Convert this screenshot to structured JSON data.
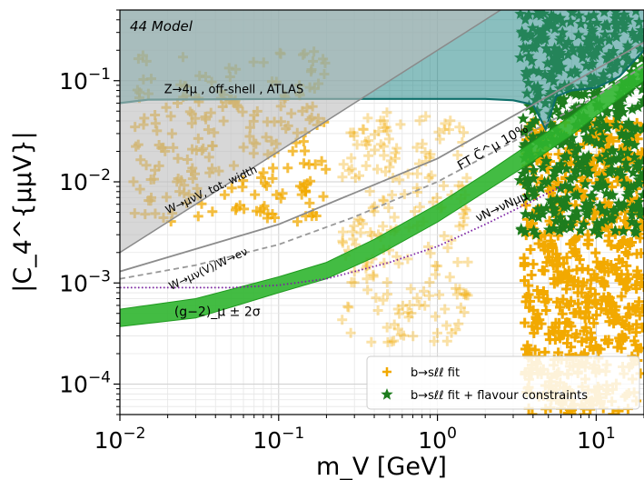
{
  "chart_data": {
    "type": "scatter",
    "title": "44 Model",
    "xlabel": "m_V [GeV]",
    "ylabel": "|C_4^{μμV}|",
    "x_scale": "log",
    "y_scale": "log",
    "xlim": [
      0.01,
      20
    ],
    "ylim": [
      5e-05,
      0.5
    ],
    "grid": true,
    "x_ticks": [
      {
        "value": 0.01,
        "base": "10",
        "exp": "−2"
      },
      {
        "value": 0.1,
        "base": "10",
        "exp": "−1"
      },
      {
        "value": 1,
        "base": "10",
        "exp": "0"
      },
      {
        "value": 10,
        "base": "10",
        "exp": "1"
      }
    ],
    "y_ticks": [
      {
        "value": 0.0001,
        "base": "10",
        "exp": "−4"
      },
      {
        "value": 0.001,
        "base": "10",
        "exp": "−3"
      },
      {
        "value": 0.01,
        "base": "10",
        "exp": "−2"
      },
      {
        "value": 0.1,
        "base": "10",
        "exp": "−1"
      }
    ],
    "bands": [
      {
        "name": "Z→4μ , off-shell , ATLAS",
        "kind": "upper_exclusion",
        "color": "#2a8a8a",
        "lower": [
          [
            0.01,
            0.06
          ],
          [
            0.015,
            0.065
          ],
          [
            0.1,
            0.066
          ],
          [
            0.5,
            0.066
          ],
          [
            1,
            0.066
          ],
          [
            2,
            0.066
          ],
          [
            3,
            0.064
          ],
          [
            4,
            0.058
          ],
          [
            4.6,
            0.038
          ],
          [
            4.8,
            0.033
          ],
          [
            5.0,
            0.04
          ],
          [
            5.6,
            0.07
          ],
          [
            7,
            0.08
          ],
          [
            10,
            0.085
          ],
          [
            14,
            0.11
          ],
          [
            20,
            0.2
          ]
        ]
      },
      {
        "name": "W→μνV, tot. width",
        "kind": "upper_exclusion",
        "color": "#bdbdbd",
        "lower": [
          [
            0.01,
            0.002
          ],
          [
            0.03,
            0.006
          ],
          [
            0.1,
            0.02
          ],
          [
            0.3,
            0.06
          ],
          [
            1,
            0.2
          ],
          [
            2.5,
            0.5
          ]
        ]
      },
      {
        "name": "(g−2)_μ ± 2σ",
        "kind": "band",
        "color": "#2fb52f",
        "upper": [
          [
            0.01,
            0.00055
          ],
          [
            0.03,
            0.0007
          ],
          [
            0.1,
            0.00115
          ],
          [
            0.2,
            0.0016
          ],
          [
            0.4,
            0.0027
          ],
          [
            1,
            0.006
          ],
          [
            2,
            0.012
          ],
          [
            4,
            0.025
          ],
          [
            7,
            0.045
          ],
          [
            10,
            0.07
          ],
          [
            20,
            0.15
          ]
        ],
        "lower": [
          [
            0.01,
            0.00037
          ],
          [
            0.03,
            0.00045
          ],
          [
            0.1,
            0.0008
          ],
          [
            0.2,
            0.0011
          ],
          [
            0.4,
            0.0018
          ],
          [
            1,
            0.004
          ],
          [
            2,
            0.008
          ],
          [
            4,
            0.016
          ],
          [
            7,
            0.029
          ],
          [
            10,
            0.045
          ],
          [
            20,
            0.1
          ]
        ]
      }
    ],
    "lines": [
      {
        "name": "FT C̃^μ 10%",
        "style": "dashed",
        "color": "#999999",
        "points": [
          [
            0.01,
            0.0011
          ],
          [
            0.03,
            0.0015
          ],
          [
            0.1,
            0.0024
          ],
          [
            0.3,
            0.0045
          ],
          [
            1,
            0.01
          ],
          [
            3,
            0.025
          ],
          [
            10,
            0.07
          ],
          [
            20,
            0.14
          ]
        ]
      },
      {
        "name": "W→μν(V)/W→eν",
        "style": "solid",
        "color": "#8c8c8c",
        "points": [
          [
            0.01,
            0.0013
          ],
          [
            0.1,
            0.0038
          ],
          [
            1,
            0.017
          ],
          [
            10,
            0.13
          ],
          [
            20,
            0.24
          ]
        ]
      },
      {
        "name": "νN→νNμμ",
        "style": "dotted",
        "color": "#7a1fa2",
        "points": [
          [
            0.01,
            0.0009
          ],
          [
            0.05,
            0.0009
          ],
          [
            0.1,
            0.00095
          ],
          [
            0.2,
            0.0011
          ],
          [
            0.5,
            0.0016
          ],
          [
            1,
            0.0023
          ],
          [
            2,
            0.0038
          ],
          [
            4,
            0.0065
          ],
          [
            6,
            0.009
          ]
        ]
      }
    ],
    "series": [
      {
        "name": "b→sℓℓ fit",
        "marker": "plus",
        "color": "#f2a900",
        "regions": [
          {
            "x": [
              0.012,
              0.2
            ],
            "y": [
              0.004,
              0.2
            ],
            "count": 220,
            "alpha": 0.75
          },
          {
            "x": [
              0.25,
              1.6
            ],
            "y": [
              0.00025,
              0.05
            ],
            "count": 200,
            "alpha": 0.35
          },
          {
            "x": [
              3.5,
              20
            ],
            "y": [
              5e-05,
              0.04
            ],
            "count": 700,
            "alpha": 1.0
          }
        ]
      },
      {
        "name": "b→sℓℓ fit + flavour constraints",
        "marker": "star",
        "color": "#1e7d1e",
        "regions": [
          {
            "x": [
              3.3,
              20
            ],
            "y": [
              0.003,
              0.5
            ],
            "count": 520,
            "alpha": 1.0
          }
        ]
      }
    ],
    "annotations": [
      {
        "text": "Z→4μ , off-shell , ATLAS",
        "x": 0.019,
        "y": 0.075,
        "rotation": 0,
        "size": 13
      },
      {
        "text": "W→μνV, tot. width",
        "x": 0.02,
        "y": 0.0048,
        "rotation": -25,
        "size": 12
      },
      {
        "text": "FT C̃^μ 10%",
        "x": 1.4,
        "y": 0.013,
        "rotation": -30,
        "size": 14
      },
      {
        "text": "W→μν(V)/W→eν",
        "x": 0.021,
        "y": 0.00085,
        "rotation": -25,
        "size": 12
      },
      {
        "text": "(g−2)_μ ± 2σ",
        "x": 0.022,
        "y": 0.00047,
        "rotation": 0,
        "size": 14
      },
      {
        "text": "νN→νNμμ",
        "x": 1.8,
        "y": 0.004,
        "rotation": -25,
        "size": 13
      }
    ],
    "legend": {
      "placement": "bottom-right",
      "entries": [
        "b→sℓℓ fit",
        "b→sℓℓ fit + flavour constraints"
      ]
    }
  }
}
